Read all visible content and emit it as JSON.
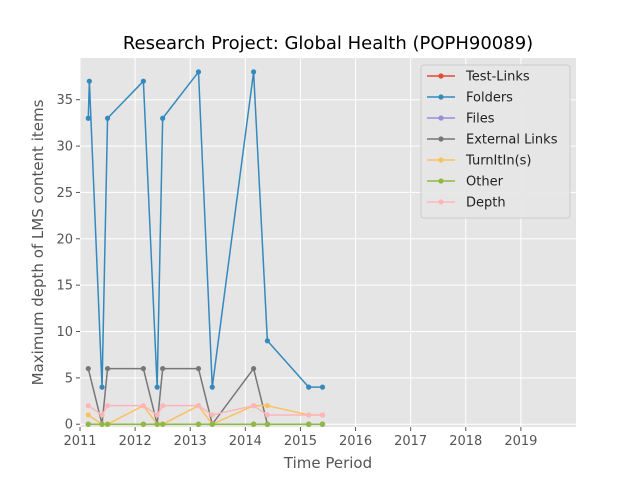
{
  "chart_data": {
    "type": "line",
    "title": "Research Project: Global Health (POPH90089)",
    "xlabel": "Time Period",
    "ylabel": "Maximum depth of LMS content items",
    "xlim": [
      2011,
      2020
    ],
    "ylim": [
      -0.3,
      39.5
    ],
    "xticks": [
      2011,
      2012,
      2013,
      2014,
      2015,
      2016,
      2017,
      2018,
      2019
    ],
    "xtick_labels": [
      "2011",
      "2012",
      "2013",
      "2014",
      "2015",
      "2016",
      "2017",
      "2018",
      "2019"
    ],
    "yticks": [
      0,
      5,
      10,
      15,
      20,
      25,
      30,
      35
    ],
    "ytick_labels": [
      "0",
      "5",
      "10",
      "15",
      "20",
      "25",
      "30",
      "35"
    ],
    "grid": true,
    "legend_position": "top-right",
    "series": [
      {
        "name": "Test-Links",
        "color": "#E24A33",
        "points": [
          [
            2011.15,
            0
          ],
          [
            2011.4,
            0
          ],
          [
            2011.5,
            0
          ],
          [
            2012.15,
            0
          ],
          [
            2012.4,
            0
          ],
          [
            2012.5,
            0
          ],
          [
            2013.15,
            0
          ],
          [
            2013.4,
            0
          ],
          [
            2014.15,
            0
          ],
          [
            2014.4,
            0
          ],
          [
            2015.15,
            0
          ],
          [
            2015.4,
            0
          ]
        ]
      },
      {
        "name": "Folders",
        "color": "#348ABD",
        "points": [
          [
            2011.15,
            33
          ],
          [
            2011.17,
            37
          ],
          [
            2011.4,
            4
          ],
          [
            2011.5,
            33
          ],
          [
            2012.15,
            37
          ],
          [
            2012.4,
            4
          ],
          [
            2012.5,
            33
          ],
          [
            2013.15,
            38
          ],
          [
            2013.4,
            4
          ],
          [
            2014.15,
            38
          ],
          [
            2014.4,
            9
          ],
          [
            2015.15,
            4
          ],
          [
            2015.4,
            4
          ]
        ]
      },
      {
        "name": "Files",
        "color": "#988ED5",
        "points": [
          [
            2011.15,
            0
          ],
          [
            2011.4,
            0
          ],
          [
            2011.5,
            0
          ],
          [
            2012.15,
            0
          ],
          [
            2012.4,
            0
          ],
          [
            2012.5,
            0
          ],
          [
            2013.15,
            0
          ],
          [
            2013.4,
            0
          ],
          [
            2014.15,
            0
          ],
          [
            2014.4,
            0
          ],
          [
            2015.15,
            0
          ],
          [
            2015.4,
            0
          ]
        ]
      },
      {
        "name": "External Links",
        "color": "#777777",
        "points": [
          [
            2011.15,
            6
          ],
          [
            2011.4,
            0
          ],
          [
            2011.5,
            6
          ],
          [
            2012.15,
            6
          ],
          [
            2012.4,
            0
          ],
          [
            2012.5,
            6
          ],
          [
            2013.15,
            6
          ],
          [
            2013.4,
            0
          ],
          [
            2014.15,
            6
          ],
          [
            2014.4,
            0
          ],
          [
            2015.15,
            0
          ],
          [
            2015.4,
            0
          ]
        ]
      },
      {
        "name": "TurnItIn(s)",
        "color": "#FBC15E",
        "points": [
          [
            2011.15,
            1
          ],
          [
            2011.4,
            0
          ],
          [
            2011.5,
            0
          ],
          [
            2012.15,
            2
          ],
          [
            2012.4,
            0
          ],
          [
            2012.5,
            0
          ],
          [
            2013.15,
            2
          ],
          [
            2013.4,
            0
          ],
          [
            2014.15,
            2
          ],
          [
            2014.4,
            2
          ],
          [
            2015.15,
            1
          ],
          [
            2015.4,
            1
          ]
        ]
      },
      {
        "name": "Other",
        "color": "#8EBA42",
        "points": [
          [
            2011.15,
            0
          ],
          [
            2011.4,
            0
          ],
          [
            2011.5,
            0
          ],
          [
            2012.15,
            0
          ],
          [
            2012.4,
            0
          ],
          [
            2012.5,
            0
          ],
          [
            2013.15,
            0
          ],
          [
            2013.4,
            0
          ],
          [
            2014.15,
            0
          ],
          [
            2014.4,
            0
          ],
          [
            2015.15,
            0
          ],
          [
            2015.4,
            0
          ]
        ]
      },
      {
        "name": "Depth",
        "color": "#FFB5B8",
        "points": [
          [
            2011.15,
            2
          ],
          [
            2011.4,
            1
          ],
          [
            2011.5,
            2
          ],
          [
            2012.15,
            2
          ],
          [
            2012.4,
            1
          ],
          [
            2012.5,
            2
          ],
          [
            2013.15,
            2
          ],
          [
            2013.4,
            1
          ],
          [
            2014.15,
            2
          ],
          [
            2014.4,
            1
          ],
          [
            2015.15,
            1
          ],
          [
            2015.4,
            1
          ]
        ]
      }
    ]
  }
}
